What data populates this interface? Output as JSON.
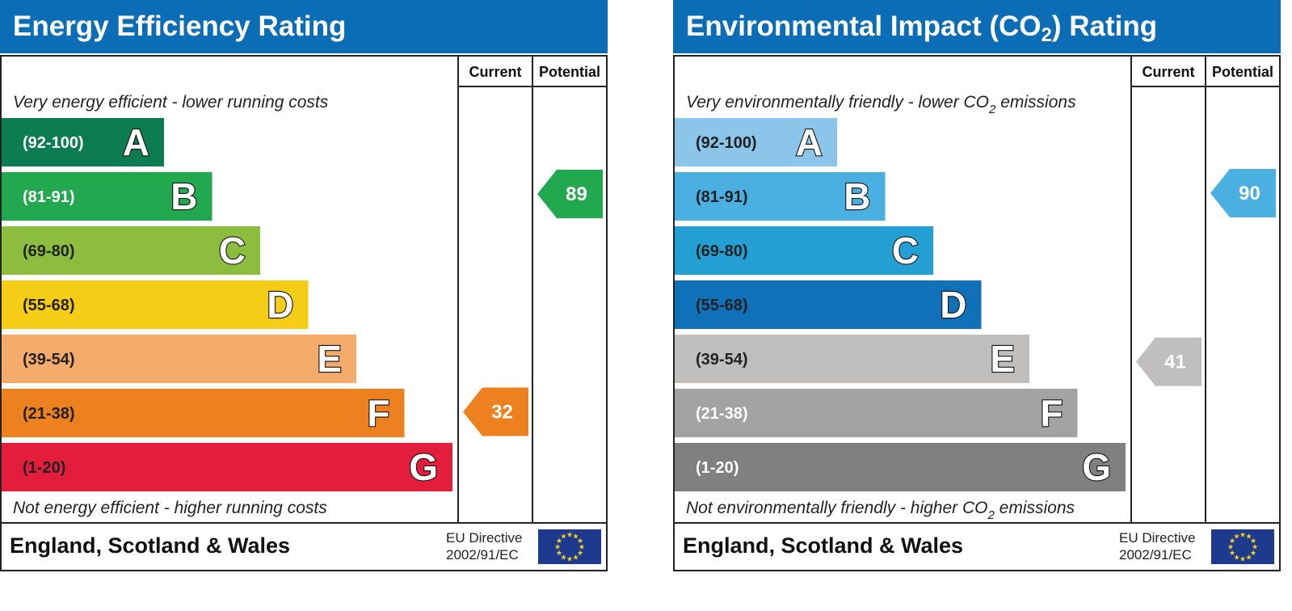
{
  "chart_data": [
    {
      "type": "bar",
      "title": "Energy Efficiency Rating",
      "columns": [
        "Current",
        "Potential"
      ],
      "caption_top": "Very energy efficient - lower running costs",
      "caption_bottom": "Not energy efficient - higher running costs",
      "footer": "England, Scotland & Wales",
      "directive_line1": "EU Directive",
      "directive_line2": "2002/91/EC",
      "bands": [
        {
          "letter": "A",
          "range": "(92-100)",
          "min": 92,
          "max": 100,
          "color": "#0c7c52",
          "label_color": "#ffffff"
        },
        {
          "letter": "B",
          "range": "(81-91)",
          "min": 81,
          "max": 91,
          "color": "#22a950",
          "label_color": "#ffffff"
        },
        {
          "letter": "C",
          "range": "(69-80)",
          "min": 69,
          "max": 80,
          "color": "#8dbd3e",
          "label_color": "#222222"
        },
        {
          "letter": "D",
          "range": "(55-68)",
          "min": 55,
          "max": 68,
          "color": "#f5cd16",
          "label_color": "#222222"
        },
        {
          "letter": "E",
          "range": "(39-54)",
          "min": 39,
          "max": 54,
          "color": "#f4ab6b",
          "label_color": "#222222"
        },
        {
          "letter": "F",
          "range": "(21-38)",
          "min": 21,
          "max": 38,
          "color": "#ed8120",
          "label_color": "#222222"
        },
        {
          "letter": "G",
          "range": "(1-20)",
          "min": 1,
          "max": 20,
          "color": "#e31d3b",
          "label_color": "#222222"
        }
      ],
      "current": {
        "value": 32,
        "band": "F",
        "color": "#ed8120"
      },
      "potential": {
        "value": 89,
        "band": "B",
        "color": "#22a950"
      }
    },
    {
      "type": "bar",
      "title": "Environmental Impact (CO2) Rating",
      "title_parts": {
        "before": "Environmental Impact (CO",
        "sub": "2",
        "after": ") Rating"
      },
      "columns": [
        "Current",
        "Potential"
      ],
      "caption_top": "Very environmentally friendly - lower CO2 emissions",
      "caption_top_parts": {
        "before": "Very environmentally friendly - lower CO",
        "sub": "2",
        "after": " emissions"
      },
      "caption_bottom": "Not environmentally friendly - higher CO2 emissions",
      "caption_bottom_parts": {
        "before": "Not environmentally friendly - higher CO",
        "sub": "2",
        "after": " emissions"
      },
      "footer": "England, Scotland & Wales",
      "directive_line1": "EU Directive",
      "directive_line2": "2002/91/EC",
      "bands": [
        {
          "letter": "A",
          "range": "(92-100)",
          "min": 92,
          "max": 100,
          "color": "#8cc5ea",
          "label_color": "#222222"
        },
        {
          "letter": "B",
          "range": "(81-91)",
          "min": 81,
          "max": 91,
          "color": "#4ab0e2",
          "label_color": "#222222"
        },
        {
          "letter": "C",
          "range": "(69-80)",
          "min": 69,
          "max": 80,
          "color": "#239fd3",
          "label_color": "#222222"
        },
        {
          "letter": "D",
          "range": "(55-68)",
          "min": 55,
          "max": 68,
          "color": "#1071b8",
          "label_color": "#222222"
        },
        {
          "letter": "E",
          "range": "(39-54)",
          "min": 39,
          "max": 54,
          "color": "#c0bfbd",
          "label_color": "#222222"
        },
        {
          "letter": "F",
          "range": "(21-38)",
          "min": 21,
          "max": 38,
          "color": "#a3a3a3",
          "label_color": "#ffffff"
        },
        {
          "letter": "G",
          "range": "(1-20)",
          "min": 1,
          "max": 20,
          "color": "#808080",
          "label_color": "#ffffff"
        }
      ],
      "current": {
        "value": 41,
        "band": "E",
        "color": "#c0bfbd"
      },
      "potential": {
        "value": 90,
        "band": "B",
        "color": "#4ab0e2"
      }
    }
  ],
  "theme": {
    "header_blue": "#0b6db5",
    "eu_flag_blue": "#1e3a8f",
    "eu_star_gold": "#f8d41c"
  }
}
